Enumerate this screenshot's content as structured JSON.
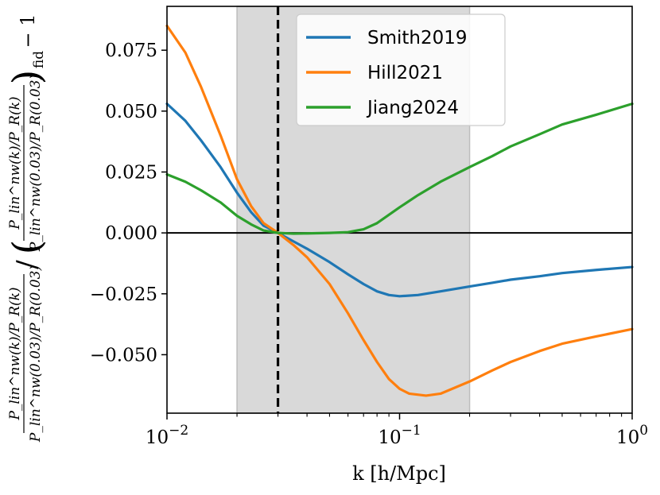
{
  "chart_data": {
    "type": "line",
    "xlabel": "k [h/Mpc]",
    "xscale": "log",
    "xlim": [
      0.01,
      1
    ],
    "ylim": [
      -0.074,
      0.093
    ],
    "x_ticks": [
      {
        "value": 0.01,
        "base": "10",
        "exp": "−2"
      },
      {
        "value": 0.1,
        "base": "10",
        "exp": "−1"
      },
      {
        "value": 1,
        "base": "10",
        "exp": "0"
      }
    ],
    "y_ticks": [
      {
        "value": 0.075,
        "label": "0.075"
      },
      {
        "value": 0.05,
        "label": "0.050"
      },
      {
        "value": 0.025,
        "label": "0.025"
      },
      {
        "value": 0.0,
        "label": "0.000"
      },
      {
        "value": -0.025,
        "label": "−0.025"
      },
      {
        "value": -0.05,
        "label": "−0.050"
      }
    ],
    "ylabel": {
      "num": "P_lin^nw(k)/P_R(k)",
      "den": "P_lin^nw(0.03)/P_R(0.03)",
      "suffix_sub": "fid",
      "suffix": "− 1"
    },
    "shaded_region": {
      "x0": 0.02,
      "x1": 0.2,
      "color": "#d9d9d9"
    },
    "vline": {
      "x": 0.03,
      "style": "dashed",
      "color": "#000000"
    },
    "hline": {
      "y": 0,
      "color": "#000000"
    },
    "legend_position": "top-center",
    "series": [
      {
        "name": "Smith2019",
        "color": "#1f77b4",
        "x": [
          0.01,
          0.012,
          0.014,
          0.017,
          0.02,
          0.023,
          0.026,
          0.03,
          0.035,
          0.04,
          0.05,
          0.06,
          0.07,
          0.08,
          0.09,
          0.1,
          0.12,
          0.15,
          0.2,
          0.25,
          0.3,
          0.4,
          0.5,
          0.7,
          1.0
        ],
        "y": [
          0.053,
          0.046,
          0.038,
          0.027,
          0.0165,
          0.0085,
          0.003,
          0.0,
          -0.0035,
          -0.0065,
          -0.012,
          -0.017,
          -0.021,
          -0.024,
          -0.0255,
          -0.026,
          -0.0255,
          -0.024,
          -0.022,
          -0.0205,
          -0.0192,
          -0.0178,
          -0.0165,
          -0.0152,
          -0.014
        ]
      },
      {
        "name": "Hill2021",
        "color": "#ff7f0e",
        "x": [
          0.01,
          0.012,
          0.014,
          0.017,
          0.02,
          0.023,
          0.026,
          0.03,
          0.035,
          0.04,
          0.05,
          0.06,
          0.07,
          0.08,
          0.09,
          0.1,
          0.11,
          0.13,
          0.15,
          0.2,
          0.25,
          0.3,
          0.4,
          0.5,
          0.7,
          1.0
        ],
        "y": [
          0.085,
          0.074,
          0.06,
          0.04,
          0.022,
          0.011,
          0.004,
          0.0,
          -0.005,
          -0.01,
          -0.021,
          -0.033,
          -0.044,
          -0.053,
          -0.06,
          -0.064,
          -0.066,
          -0.0668,
          -0.066,
          -0.061,
          -0.0565,
          -0.053,
          -0.0485,
          -0.0455,
          -0.0425,
          -0.0395
        ]
      },
      {
        "name": "Jiang2024",
        "color": "#2ca02c",
        "x": [
          0.01,
          0.012,
          0.014,
          0.017,
          0.02,
          0.023,
          0.026,
          0.03,
          0.035,
          0.04,
          0.05,
          0.06,
          0.07,
          0.08,
          0.1,
          0.12,
          0.15,
          0.2,
          0.25,
          0.3,
          0.4,
          0.5,
          0.7,
          1.0
        ],
        "y": [
          0.024,
          0.021,
          0.0175,
          0.0125,
          0.007,
          0.0035,
          0.001,
          0.0,
          -0.0003,
          -0.0002,
          0.0,
          0.0003,
          0.0015,
          0.004,
          0.0105,
          0.0155,
          0.021,
          0.027,
          0.0315,
          0.0355,
          0.0405,
          0.0445,
          0.0485,
          0.053
        ]
      }
    ]
  }
}
